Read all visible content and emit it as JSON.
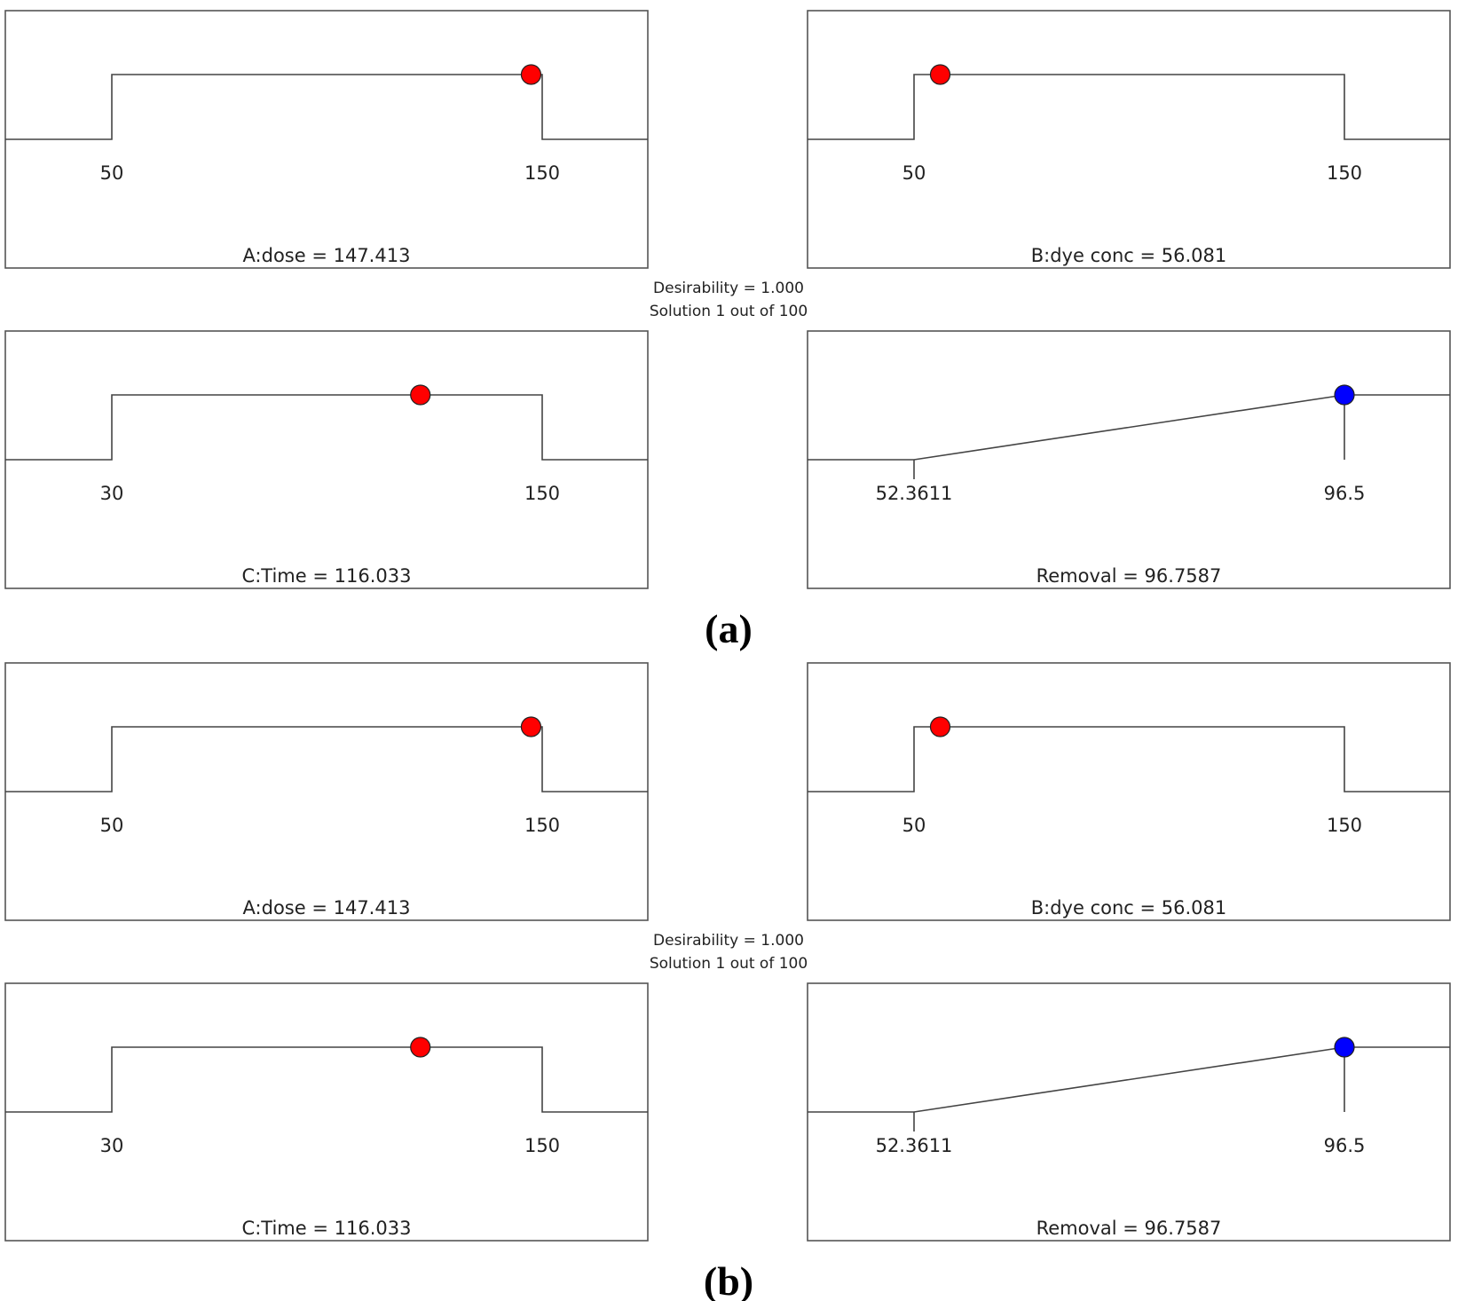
{
  "chart_data": [
    {
      "type": "desirability-ramps",
      "figure_label": "(a)",
      "desirability_text": "Desirability = 1.000",
      "solution_text": "Solution 1 out of 100",
      "panels": [
        {
          "kind": "factor",
          "caption": "A:dose = 147.413",
          "low": 50,
          "high": 150,
          "low_label": "50",
          "high_label": "150",
          "value": 147.413,
          "marker_color": "#ff0000"
        },
        {
          "kind": "factor",
          "caption": "B:dye conc = 56.081",
          "low": 50,
          "high": 150,
          "low_label": "50",
          "high_label": "150",
          "value": 56.081,
          "marker_color": "#ff0000"
        },
        {
          "kind": "factor",
          "caption": "C:Time = 116.033",
          "low": 30,
          "high": 150,
          "low_label": "30",
          "high_label": "150",
          "value": 116.033,
          "marker_color": "#ff0000"
        },
        {
          "kind": "response",
          "caption": "Removal = 96.7587",
          "low": 52.3611,
          "high": 96.5,
          "low_label": "52.3611",
          "high_label": "96.5",
          "value": 96.7587,
          "marker_color": "#0000ff"
        }
      ]
    },
    {
      "type": "desirability-ramps",
      "figure_label": "(b)",
      "desirability_text": "Desirability = 1.000",
      "solution_text": "Solution 1 out of 100",
      "panels": [
        {
          "kind": "factor",
          "caption": "A:dose = 147.413",
          "low": 50,
          "high": 150,
          "low_label": "50",
          "high_label": "150",
          "value": 147.413,
          "marker_color": "#ff0000"
        },
        {
          "kind": "factor",
          "caption": "B:dye conc = 56.081",
          "low": 50,
          "high": 150,
          "low_label": "50",
          "high_label": "150",
          "value": 56.081,
          "marker_color": "#ff0000"
        },
        {
          "kind": "factor",
          "caption": "C:Time = 116.033",
          "low": 30,
          "high": 150,
          "low_label": "30",
          "high_label": "150",
          "value": 116.033,
          "marker_color": "#ff0000"
        },
        {
          "kind": "response",
          "caption": "Removal = 96.7587",
          "low": 52.3611,
          "high": 96.5,
          "low_label": "52.3611",
          "high_label": "96.5",
          "value": 96.7587,
          "marker_color": "#0000ff"
        }
      ]
    }
  ]
}
